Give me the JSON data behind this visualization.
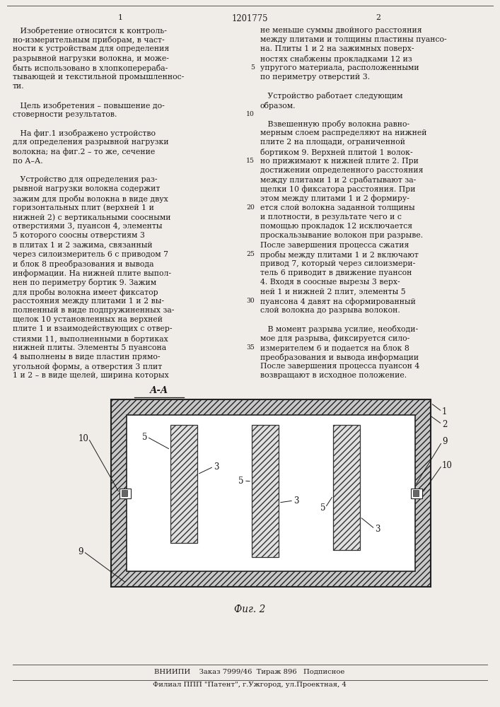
{
  "page_title": "1201775",
  "page_num_left": "1",
  "page_num_right": "2",
  "col1_text": [
    "   Изобретение относится к контроль-",
    "но-измерительным приборам, в част-",
    "ности к устройствам для определения",
    "разрывной нагрузки волокна, и може-",
    "быть использовано в хлопкоперераба-",
    "тывающей и текстильной промышленнос-",
    "ти.",
    "",
    "   Цель изобретения – повышение до-",
    "стоверности результатов.",
    "",
    "   На фиг.1 изображено устройство",
    "для определения разрывной нагрузки",
    "волокна; на фиг.2 – то же, сечение",
    "по А–А.",
    "",
    "   Устройство для определения раз-",
    "рывной нагрузки волокна содержит",
    "зажим для пробы волокна в виде двух",
    "горизонтальных плит (верхней 1 и",
    "нижней 2) с вертикальными соосными",
    "отверстиями 3, пуансон 4, элементы",
    "5 которого соосны отверстиям 3",
    "в плитах 1 и 2 зажима, связанный",
    "через силоизмеритель 6 с приводом 7",
    "и блок 8 преобразования и вывода",
    "информации. На нижней плите выпол-",
    "нен по периметру бортик 9. Зажим",
    "для пробы волокна имеет фиксатор",
    "расстояния между плитами 1 и 2 вы-",
    "полненный в виде подпружиненных за-",
    "щелок 10 установленных на верхней",
    "плите 1 и взаимодействующих с отвер-",
    "стиями 11, выполненными в бортиках",
    "нижней плиты. Элементы 5 пуансона",
    "4 выполнены в виде пластин прямо-",
    "угольной формы, а отверстия 3 плит",
    "1 и 2 – в виде щелей, ширина которых"
  ],
  "col2_text": [
    "не меньше суммы двойного расстояния",
    "между плитами и толщины пластины пуансо-",
    "на. Плиты 1 и 2 на зажимных поверх-",
    "ностях снабжены прокладками 12 из",
    "упругого материала, расположенными",
    "по периметру отверстий 3.",
    "",
    "   Устройство работает следующим",
    "образом.",
    "",
    "   Взвешенную пробу волокна равно-",
    "мерным слоем распределяют на нижней",
    "плите 2 на площади, ограниченной",
    "бортиком 9. Верхней плитой 1 волок-",
    "но прижимают к нижней плите 2. При",
    "достижении определенного расстояния",
    "между плитами 1 и 2 срабатывают за-",
    "щелки 10 фиксатора расстояния. При",
    "этом между плитами 1 и 2 формиру-",
    "ется слой волокна заданной толщины",
    "и плотности, в результате чего и с",
    "помощью прокладок 12 исключается",
    "проскальзывание волокон при разрыве.",
    "После завершения процесса сжатия",
    "пробы между плитами 1 и 2 включают",
    "привод 7, который через силоизмери-",
    "тель 6 приводит в движение пуансон",
    "4. Входя в соосные вырезы 3 верх-",
    "ней 1 и нижней 2 плит, элементы 5",
    "пуансона 4 давят на сформированный",
    "слой волокна до разрыва волокон.",
    "",
    "   В момент разрыва усилие, необходи-",
    "мое для разрыва, фиксируется сило-",
    "измерителем 6 и подается на блок 8",
    "преобразования и вывода информации",
    "После завершения процесса пуансон 4",
    "возвращают в исходное положение."
  ],
  "line_numbers_col2": [
    5,
    10,
    15,
    20,
    25,
    30,
    35
  ],
  "section_label": "А-А",
  "fig_label": "Фиг. 2",
  "footer_line1": "ВНИИПИ    Заказ 7999/46  Тираж 896   Подписное",
  "footer_line2": "Филиал ППП \"Патент\", г.Ужгород, ул.Проектная, 4",
  "bg_color": "#f0ede8",
  "text_color": "#1a1a1a"
}
